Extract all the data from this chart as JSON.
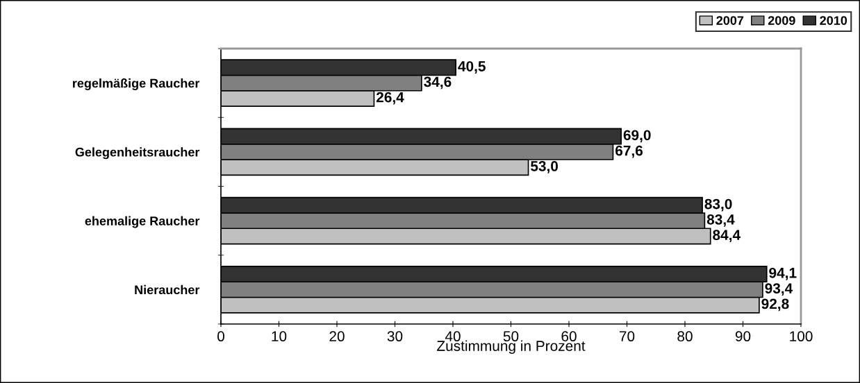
{
  "chart_data": {
    "type": "bar",
    "orientation": "horizontal",
    "xlabel": "Zustimmung in Prozent",
    "categories": [
      "regelmäßige Raucher",
      "Gelegenheitsraucher",
      "ehemalige Raucher",
      "Nieraucher"
    ],
    "series": [
      {
        "name": "2007",
        "color": "#c0c0c0",
        "values": [
          26.4,
          53.0,
          84.4,
          92.8
        ],
        "value_labels": [
          "26,4",
          "53,0",
          "84,4",
          "92,8"
        ]
      },
      {
        "name": "2009",
        "color": "#808080",
        "values": [
          34.6,
          67.6,
          83.4,
          93.4
        ],
        "value_labels": [
          "34,6",
          "67,6",
          "83,4",
          "93,4"
        ]
      },
      {
        "name": "2010",
        "color": "#333333",
        "values": [
          40.5,
          69.0,
          83.0,
          94.1
        ],
        "value_labels": [
          "40,5",
          "69,0",
          "83,0",
          "94,1"
        ]
      }
    ],
    "xlim": [
      0,
      100
    ],
    "xticks": [
      0,
      10,
      20,
      30,
      40,
      50,
      60,
      70,
      80,
      90,
      100
    ],
    "grid": false,
    "legend": "top right"
  }
}
